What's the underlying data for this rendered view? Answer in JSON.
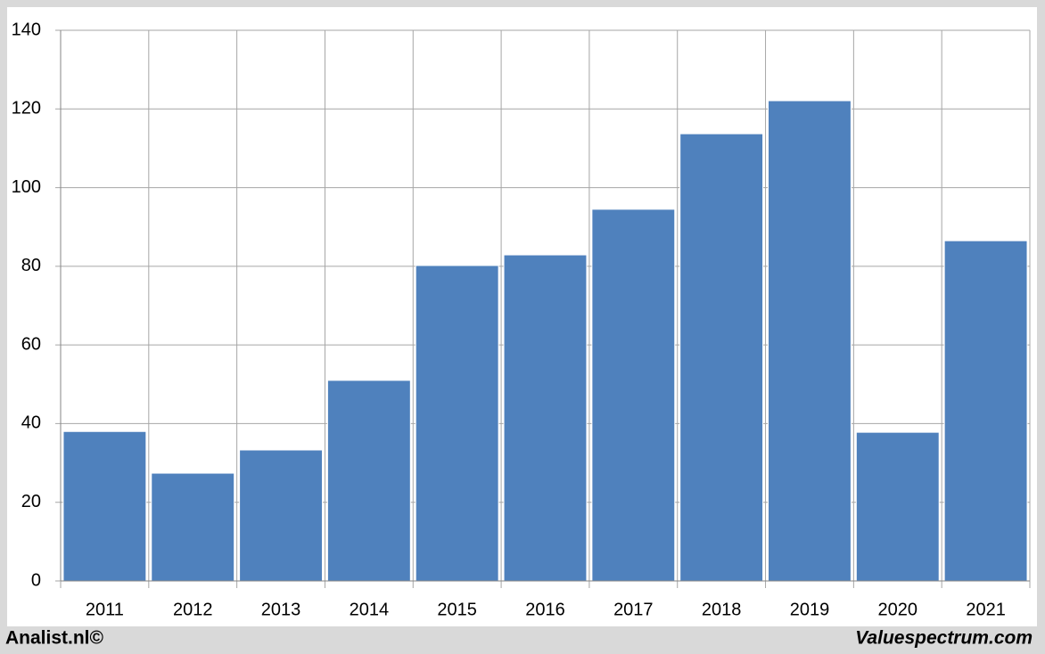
{
  "chart_data": {
    "type": "bar",
    "categories": [
      "2011",
      "2012",
      "2013",
      "2014",
      "2015",
      "2016",
      "2017",
      "2018",
      "2019",
      "2020",
      "2021"
    ],
    "values": [
      38,
      27.4,
      33.3,
      51,
      80.2,
      82.9,
      94.5,
      113.7,
      122.1,
      37.8,
      86.5
    ],
    "color": "#4f81bd",
    "ylim": [
      0,
      140
    ],
    "yticks": [
      0,
      20,
      40,
      60,
      80,
      100,
      120,
      140
    ],
    "grid": true
  },
  "footer": {
    "left": "Analist.nl©",
    "right": "Valuespectrum.com"
  }
}
